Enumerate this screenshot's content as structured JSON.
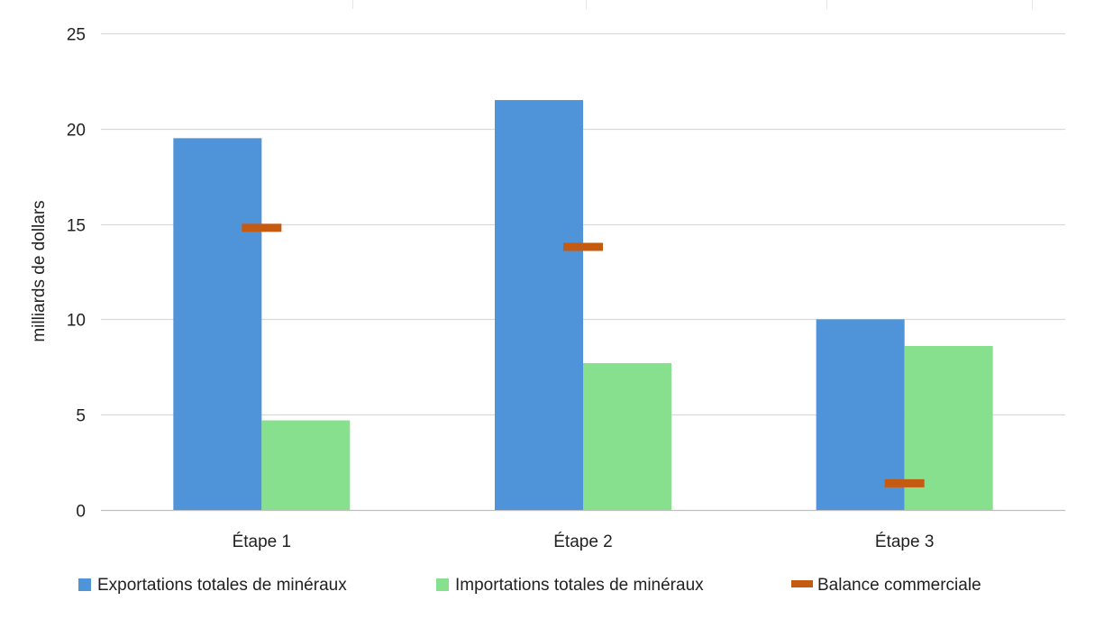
{
  "chart_data": {
    "type": "bar",
    "categories": [
      "Étape 1",
      "Étape 2",
      "Étape 3"
    ],
    "series": [
      {
        "name": "Exportations totales de minéraux",
        "kind": "bar",
        "color": "#4F94D9",
        "values": [
          19.5,
          21.5,
          10.0
        ]
      },
      {
        "name": "Importations totales de minéraux",
        "kind": "bar",
        "color": "#86E08E",
        "values": [
          4.7,
          7.7,
          8.6
        ]
      },
      {
        "name": "Balance commerciale",
        "kind": "marker",
        "color": "#C55A11",
        "values": [
          14.8,
          13.8,
          1.4
        ]
      }
    ],
    "ylabel": "milliards de dollars",
    "xlabel": "",
    "ylim": [
      0,
      25
    ],
    "yticks": [
      0,
      5,
      10,
      15,
      20,
      25
    ],
    "grid": true,
    "legend": "bottom"
  }
}
